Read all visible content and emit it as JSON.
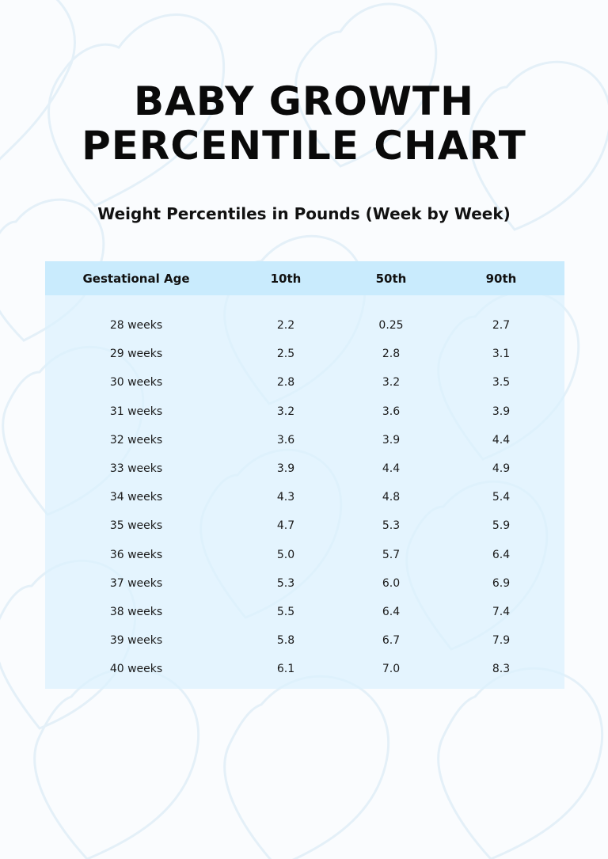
{
  "title_lines": [
    "BABY GROWTH",
    "PERCENTILE CHART"
  ],
  "subtitle": "Weight Percentiles in Pounds (Week by Week)",
  "colors": {
    "header_band": "#c9ebfd",
    "table_bg": "#dcf2fe",
    "heart_outline": "#e4f0f8"
  },
  "table": {
    "headers": [
      "Gestational Age",
      "10th",
      "50th",
      "90th"
    ],
    "rows": [
      [
        "28 weeks",
        "2.2",
        "0.25",
        "2.7"
      ],
      [
        "29 weeks",
        "2.5",
        "2.8",
        "3.1"
      ],
      [
        "30 weeks",
        "2.8",
        "3.2",
        "3.5"
      ],
      [
        "31 weeks",
        "3.2",
        "3.6",
        "3.9"
      ],
      [
        "32 weeks",
        "3.6",
        "3.9",
        "4.4"
      ],
      [
        "33 weeks",
        "3.9",
        "4.4",
        "4.9"
      ],
      [
        "34 weeks",
        "4.3",
        "4.8",
        "5.4"
      ],
      [
        "35 weeks",
        "4.7",
        "5.3",
        "5.9"
      ],
      [
        "36 weeks",
        "5.0",
        "5.7",
        "6.4"
      ],
      [
        "37 weeks",
        "5.3",
        "6.0",
        "6.9"
      ],
      [
        "38 weeks",
        "5.5",
        "6.4",
        "7.4"
      ],
      [
        "39 weeks",
        "5.8",
        "6.7",
        "7.9"
      ],
      [
        "40 weeks",
        "6.1",
        "7.0",
        "8.3"
      ]
    ]
  }
}
